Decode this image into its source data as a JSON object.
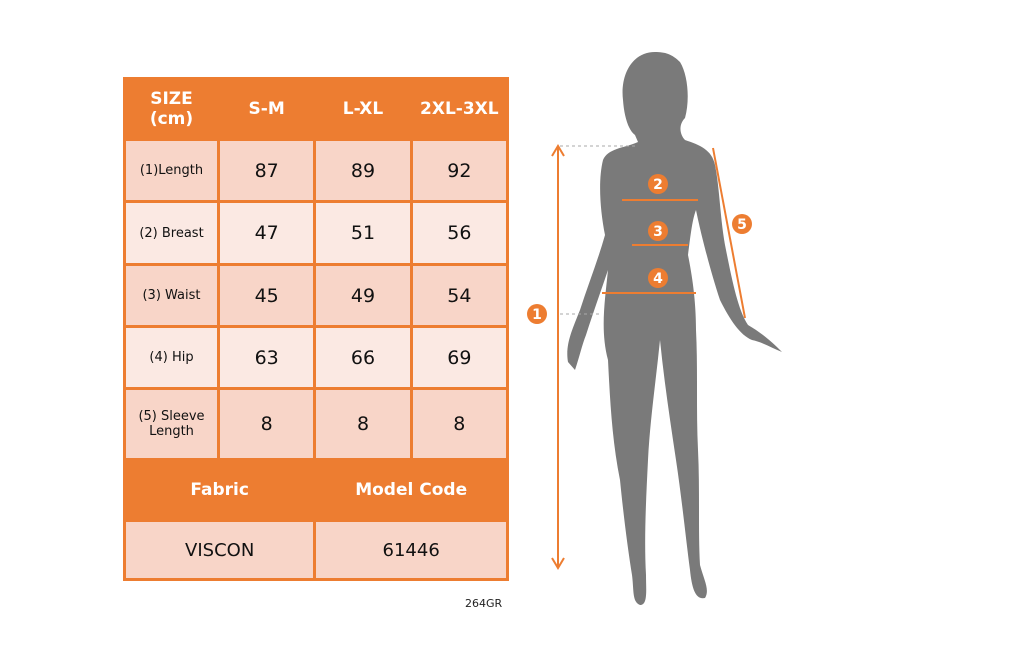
{
  "table": {
    "header": [
      "SIZE\n(cm)",
      "S-M",
      "L-XL",
      "2XL-3XL"
    ],
    "header_size_line1": "SIZE",
    "header_size_line2": "(cm)",
    "rows": [
      {
        "label": "(1)Length",
        "values": [
          "87",
          "89",
          "92"
        ]
      },
      {
        "label": "(2) Breast",
        "values": [
          "47",
          "51",
          "56"
        ]
      },
      {
        "label": "(3) Waist",
        "values": [
          "45",
          "49",
          "54"
        ]
      },
      {
        "label": "(4) Hip",
        "values": [
          "63",
          "66",
          "69"
        ]
      },
      {
        "label": "(5) Sleeve Length",
        "label_line1": "(5) Sleeve",
        "label_line2": "Length",
        "values": [
          "8",
          "8",
          "8"
        ]
      }
    ],
    "fabric_header": "Fabric",
    "model_header": "Model Code",
    "fabric": "VISCON",
    "model_code": "61446"
  },
  "product_code": "264GR",
  "figure": {
    "markers": [
      "1",
      "2",
      "3",
      "4",
      "5"
    ],
    "accent": "#ed7d31",
    "silhouette": "#7a7a7a"
  }
}
